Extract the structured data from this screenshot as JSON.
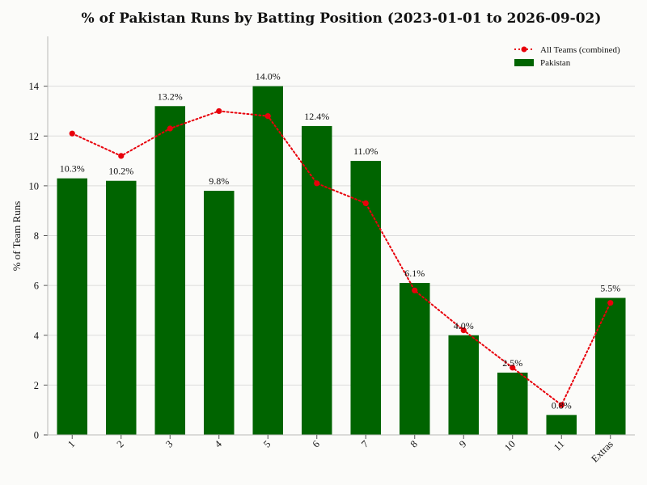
{
  "chart_data": {
    "type": "bar",
    "title": "% of Pakistan Runs by Batting Position (2023-01-01 to 2026-09-02)",
    "xlabel": "",
    "ylabel": "% of Team Runs",
    "categories": [
      "1",
      "2",
      "3",
      "4",
      "5",
      "6",
      "7",
      "8",
      "9",
      "10",
      "11",
      "Extras"
    ],
    "ylim": [
      0,
      16
    ],
    "yticks": [
      0,
      2,
      4,
      6,
      8,
      10,
      12,
      14
    ],
    "grid": true,
    "legend_position": "top-right",
    "series": [
      {
        "name": "Pakistan",
        "type": "bar",
        "color": "#006400",
        "values": [
          10.3,
          10.2,
          13.2,
          9.8,
          14.0,
          12.4,
          11.0,
          6.1,
          4.0,
          2.5,
          0.8,
          5.5
        ],
        "labels": [
          "10.3%",
          "10.2%",
          "13.2%",
          "9.8%",
          "14.0%",
          "12.4%",
          "11.0%",
          "6.1%",
          "4.0%",
          "2.5%",
          "0.8%",
          "5.5%"
        ]
      },
      {
        "name": "All Teams (combined)",
        "type": "line",
        "style": "dotted",
        "color": "#e8000b",
        "values": [
          12.1,
          11.2,
          12.3,
          13.0,
          12.8,
          10.1,
          9.3,
          5.8,
          4.2,
          2.7,
          1.2,
          5.3
        ]
      }
    ]
  }
}
